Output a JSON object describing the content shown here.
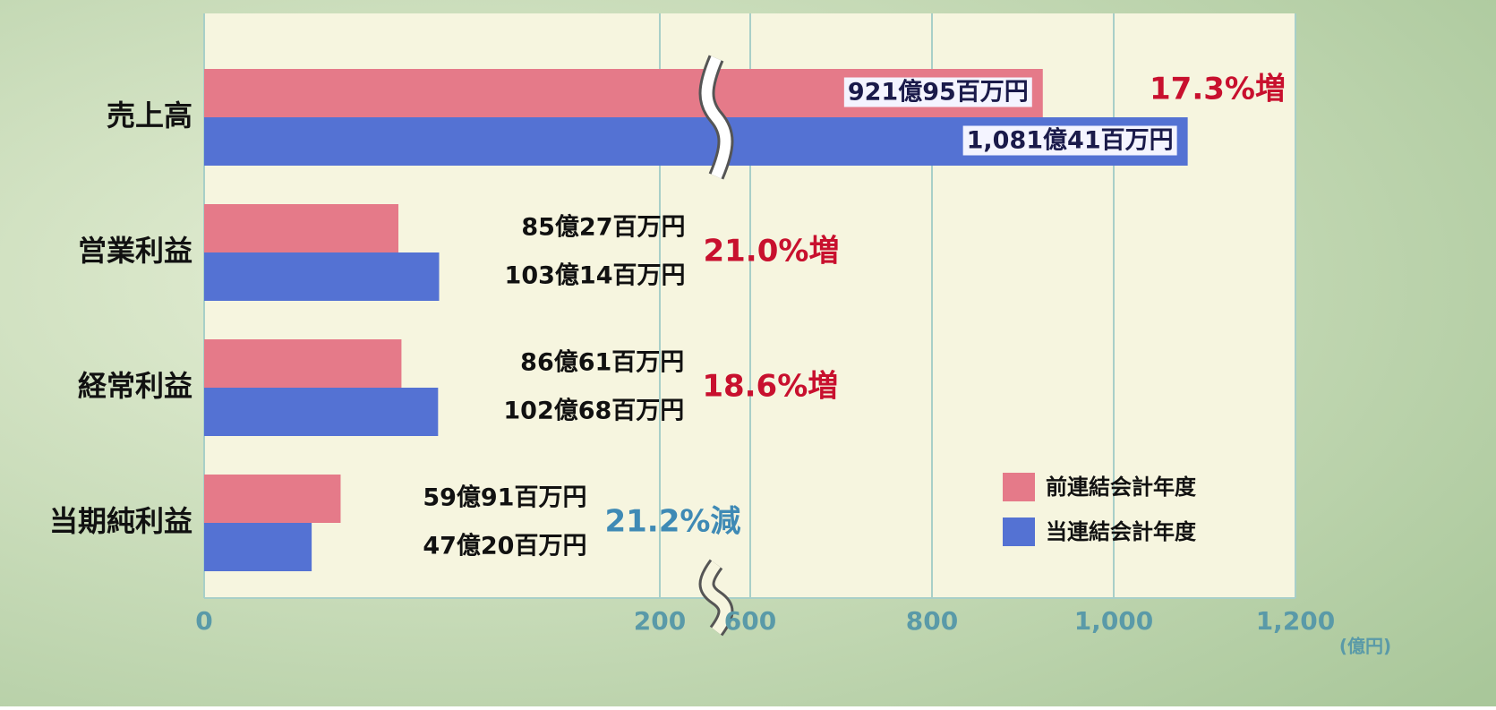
{
  "chart_data": {
    "type": "bar",
    "orientation": "horizontal",
    "categories": [
      "売上高",
      "営業利益",
      "経常利益",
      "当期純利益"
    ],
    "series": [
      {
        "name": "前連結会計年度",
        "color": "#e57a89",
        "values": [
          921.95,
          85.27,
          86.61,
          59.91
        ],
        "value_labels": [
          "921億95百万円",
          "85億27百万円",
          "86億61百万円",
          "59億91百万円"
        ]
      },
      {
        "name": "当連結会計年度",
        "color": "#5472d3",
        "values": [
          1081.41,
          103.14,
          102.68,
          47.2
        ],
        "value_labels": [
          "1,081億41百万円",
          "103億14百万円",
          "102億68百万円",
          "47億20百万円"
        ]
      }
    ],
    "change_labels": [
      "17.3%増",
      "21.0%増",
      "18.6%増",
      "21.2%減"
    ],
    "change_colors": [
      "#c8102e",
      "#c8102e",
      "#c8102e",
      "#3f8ab5"
    ],
    "xlim": [
      0,
      1200
    ],
    "axis_break": [
      200,
      600
    ],
    "xticks": [
      0,
      200,
      600,
      800,
      {
        "value": 1000,
        "label": "1,000"
      },
      {
        "value": 1200,
        "label": "1,200"
      }
    ],
    "x_unit": "(億円)",
    "grid": true,
    "legend": "bottom-right"
  }
}
